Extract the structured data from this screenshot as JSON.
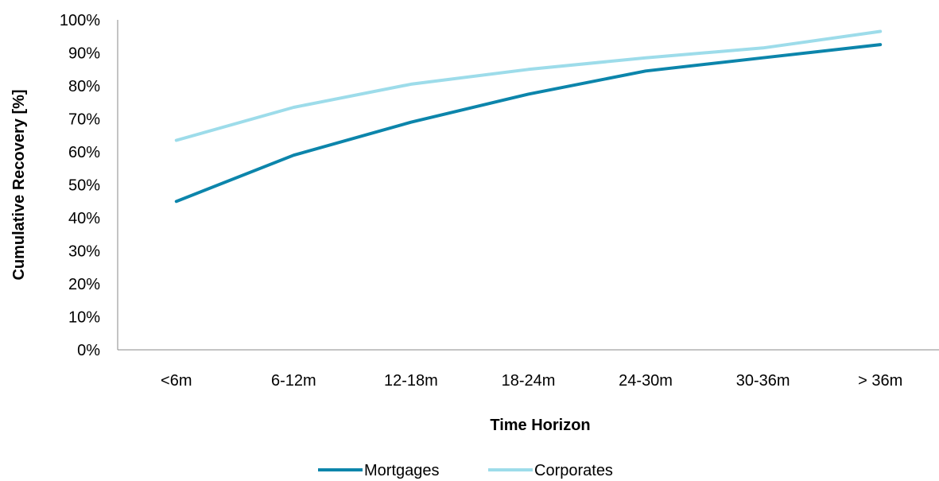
{
  "chart_data": {
    "type": "line",
    "title": "",
    "xlabel": "Time Horizon",
    "ylabel": "Cumulative Recovery [%]",
    "categories": [
      "<6m",
      "6-12m",
      "12-18m",
      "18-24m",
      "24-30m",
      "30-36m",
      "> 36m"
    ],
    "ylim": [
      0,
      100
    ],
    "yticks": [
      "0%",
      "10%",
      "20%",
      "30%",
      "40%",
      "50%",
      "60%",
      "70%",
      "80%",
      "90%",
      "100%"
    ],
    "grid": false,
    "legend_position": "bottom",
    "series": [
      {
        "name": "Mortgages",
        "color": "#0c85ab",
        "values": [
          45,
          59,
          69,
          77.5,
          84.5,
          88.5,
          92.5
        ]
      },
      {
        "name": "Corporates",
        "color": "#9ddcea",
        "values": [
          63.5,
          73.5,
          80.5,
          85,
          88.5,
          91.5,
          96.5
        ]
      }
    ]
  }
}
